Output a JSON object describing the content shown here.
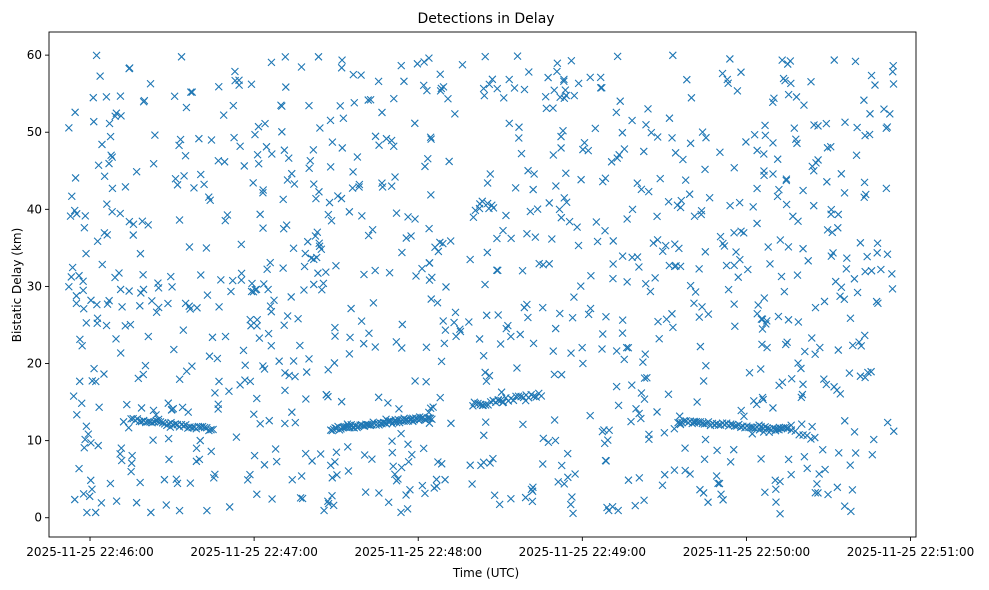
{
  "chart_data": {
    "type": "scatter",
    "title": "Detections in Delay",
    "xlabel": "Time (UTC)",
    "ylabel": "Bistatic Delay (km)",
    "marker": "x",
    "color": "#1f77b4",
    "xlim": [
      "2025-11-25 22:45:45",
      "2025-11-25 22:51:02"
    ],
    "ylim": [
      -2.5,
      63
    ],
    "xticks": [
      "2025-11-25 22:46:00",
      "2025-11-25 22:47:00",
      "2025-11-25 22:48:00",
      "2025-11-25 22:49:00",
      "2025-11-25 22:50:00",
      "2025-11-25 22:51:00"
    ],
    "yticks": [
      0,
      10,
      20,
      30,
      40,
      50,
      60
    ],
    "grid": false,
    "x_range": [
      "2025-11-25 22:45:52",
      "2025-11-25 22:50:54"
    ],
    "noise": {
      "count": 1050,
      "y_range": [
        0.5,
        60
      ]
    },
    "tracks": [
      {
        "x": [
          "2025-11-25 22:46:15",
          "2025-11-25 22:46:32",
          "2025-11-25 22:46:45"
        ],
        "y": [
          12.8,
          12.0,
          11.5
        ],
        "count": 40
      },
      {
        "x": [
          "2025-11-25 22:47:28",
          "2025-11-25 22:47:45",
          "2025-11-25 22:48:05"
        ],
        "y": [
          11.5,
          12.2,
          13.0
        ],
        "count": 70
      },
      {
        "x": [
          "2025-11-25 22:48:20",
          "2025-11-25 22:48:32",
          "2025-11-25 22:48:45"
        ],
        "y": [
          14.5,
          15.3,
          16.0
        ],
        "count": 28
      },
      {
        "x": [
          "2025-11-25 22:49:35",
          "2025-11-25 22:49:55",
          "2025-11-25 22:50:15"
        ],
        "y": [
          12.5,
          12.0,
          11.5
        ],
        "count": 55
      },
      {
        "x": [
          "2025-11-25 22:50:15",
          "2025-11-25 22:50:25"
        ],
        "y": [
          11.5,
          10.2
        ],
        "count": 8
      }
    ]
  }
}
